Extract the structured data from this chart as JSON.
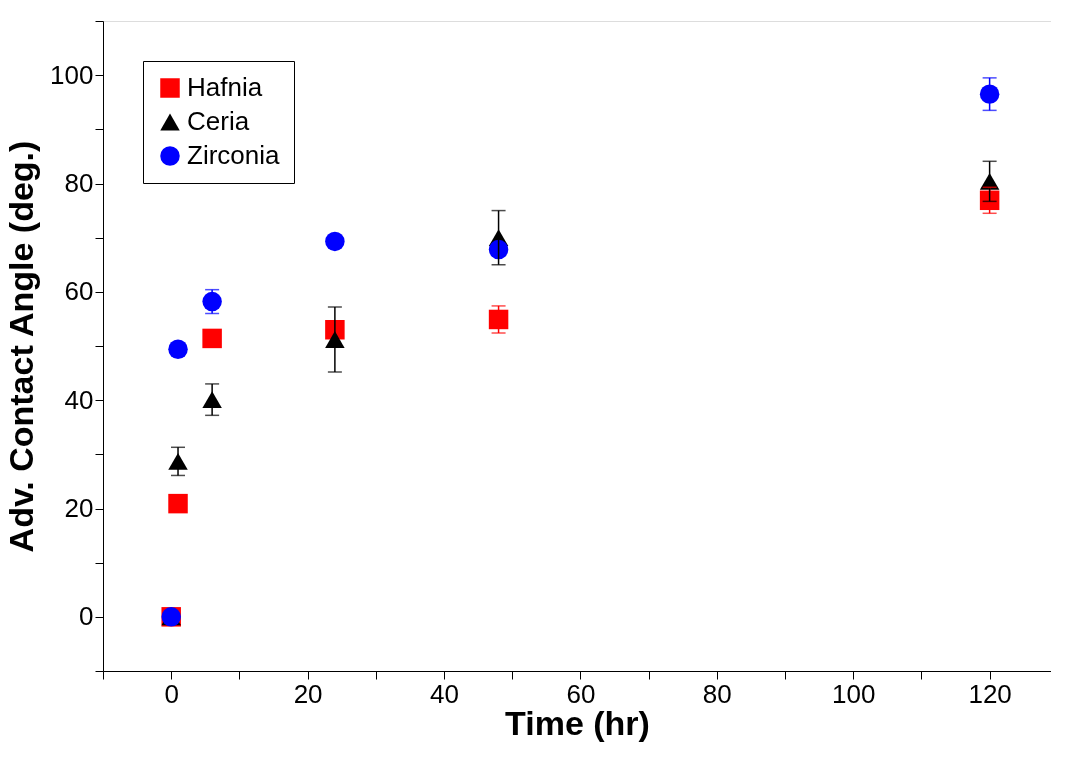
{
  "chart_data": {
    "type": "scatter",
    "xlabel": "Time (hr)",
    "ylabel": "Adv. Contact Angle (deg.)",
    "xlim": [
      -10,
      129
    ],
    "ylim": [
      -10,
      110
    ],
    "xticks": [
      {
        "value": -10,
        "label": null
      },
      0,
      {
        "value": 10,
        "label": null
      },
      20,
      {
        "value": 30,
        "label": null
      },
      40,
      {
        "value": 50,
        "label": null
      },
      60,
      {
        "value": 70,
        "label": null
      },
      80,
      {
        "value": 90,
        "label": null
      },
      100,
      {
        "value": 110,
        "label": null
      },
      120
    ],
    "yticks": [
      {
        "value": -10,
        "label": null
      },
      0,
      {
        "value": 10,
        "label": null
      },
      20,
      {
        "value": 30,
        "label": null
      },
      40,
      {
        "value": 50,
        "label": null
      },
      60,
      {
        "value": 70,
        "label": null
      },
      80,
      {
        "value": 90,
        "label": null
      },
      100,
      {
        "value": 110,
        "label": null
      }
    ],
    "grid": false,
    "legend": "top left",
    "series": [
      {
        "name": "Hafnia",
        "color": "#ff0000",
        "marker": "square",
        "x": [
          0,
          1,
          6,
          24,
          48,
          120
        ],
        "values": [
          0,
          20.9,
          51.4,
          53.0,
          54.9,
          76.9
        ],
        "errors": [
          null,
          1,
          null,
          null,
          2.5,
          2.4
        ]
      },
      {
        "name": "Ceria",
        "color": "#000000",
        "marker": "triangle",
        "x": [
          0,
          1,
          6,
          24,
          48,
          120
        ],
        "values": [
          0,
          28.7,
          40.1,
          51.2,
          70.0,
          80.4
        ],
        "errors": [
          null,
          2.6,
          2.9,
          6,
          5,
          3.7
        ]
      },
      {
        "name": "Zirconia",
        "color": "#0000ff",
        "marker": "circle",
        "x": [
          0,
          1,
          6,
          24,
          48,
          120
        ],
        "values": [
          0,
          49.4,
          58.2,
          69.3,
          67.8,
          96.5
        ],
        "errors": [
          null,
          null,
          2.2,
          null,
          null,
          3
        ]
      }
    ]
  }
}
